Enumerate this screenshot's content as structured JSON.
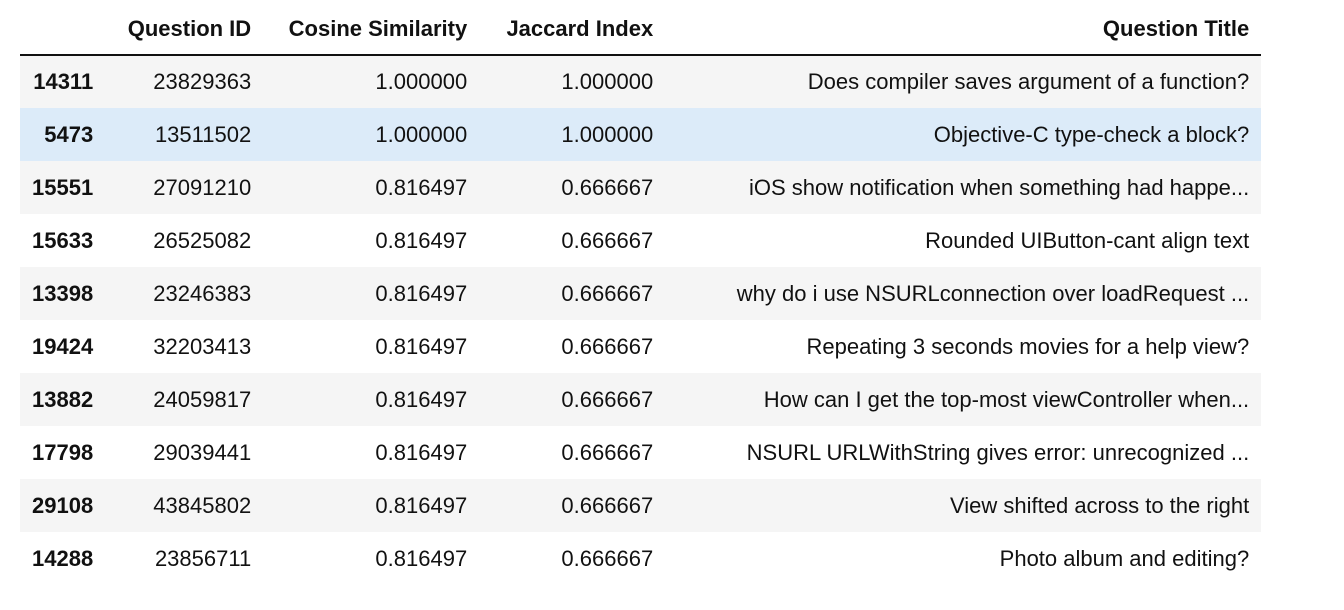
{
  "table": {
    "index_header": "",
    "columns": [
      "Question ID",
      "Cosine Similarity",
      "Jaccard Index",
      "Question Title"
    ],
    "rows": [
      {
        "index": "14311",
        "question_id": "23829363",
        "cosine": "1.000000",
        "jaccard": "1.000000",
        "title": "Does compiler saves argument of a function?"
      },
      {
        "index": "5473",
        "question_id": "13511502",
        "cosine": "1.000000",
        "jaccard": "1.000000",
        "title": "Objective-C type-check a block?"
      },
      {
        "index": "15551",
        "question_id": "27091210",
        "cosine": "0.816497",
        "jaccard": "0.666667",
        "title": "iOS show notification when something had happe..."
      },
      {
        "index": "15633",
        "question_id": "26525082",
        "cosine": "0.816497",
        "jaccard": "0.666667",
        "title": "Rounded UIButton-cant align text"
      },
      {
        "index": "13398",
        "question_id": "23246383",
        "cosine": "0.816497",
        "jaccard": "0.666667",
        "title": "why do i use NSURLconnection over loadRequest ..."
      },
      {
        "index": "19424",
        "question_id": "32203413",
        "cosine": "0.816497",
        "jaccard": "0.666667",
        "title": "Repeating 3 seconds movies for a help view?"
      },
      {
        "index": "13882",
        "question_id": "24059817",
        "cosine": "0.816497",
        "jaccard": "0.666667",
        "title": "How can I get the top-most viewController when..."
      },
      {
        "index": "17798",
        "question_id": "29039441",
        "cosine": "0.816497",
        "jaccard": "0.666667",
        "title": "NSURL URLWithString gives error: unrecognized ..."
      },
      {
        "index": "29108",
        "question_id": "43845802",
        "cosine": "0.816497",
        "jaccard": "0.666667",
        "title": "View shifted across to the right"
      },
      {
        "index": "14288",
        "question_id": "23856711",
        "cosine": "0.816497",
        "jaccard": "0.666667",
        "title": "Photo album and editing?"
      }
    ],
    "highlighted_row_index": 1,
    "colors": {
      "stripe": "#f5f5f5",
      "hover": "#dcebf9",
      "text": "#111111",
      "header_rule": "#111111"
    }
  }
}
